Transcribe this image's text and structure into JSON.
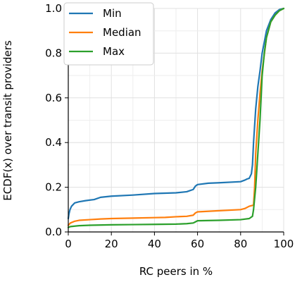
{
  "chart_data": {
    "type": "line",
    "title": "",
    "xlabel": "RC peers in %",
    "ylabel": "ECDF(x) over transit providers",
    "xlim": [
      0,
      100
    ],
    "ylim": [
      0,
      1
    ],
    "xticks": [
      "0",
      "20",
      "40",
      "60",
      "80",
      "100"
    ],
    "yticks": [
      "0.0",
      "0.2",
      "0.4",
      "0.6",
      "0.8",
      "1.0"
    ],
    "grid": true,
    "legend_placement": "top-left",
    "series": [
      {
        "name": "Min",
        "color": "#1f77b4",
        "x": [
          0,
          0.3,
          0.8,
          1.5,
          3,
          5,
          8,
          12,
          15,
          20,
          30,
          40,
          50,
          55,
          58,
          59,
          60,
          65,
          70,
          80,
          82,
          83,
          84,
          85,
          85.5,
          86,
          87,
          88,
          89,
          90,
          92,
          94,
          96,
          98,
          100
        ],
        "y": [
          0.06,
          0.08,
          0.1,
          0.115,
          0.13,
          0.135,
          0.14,
          0.145,
          0.155,
          0.16,
          0.165,
          0.172,
          0.175,
          0.18,
          0.19,
          0.205,
          0.212,
          0.218,
          0.22,
          0.225,
          0.232,
          0.237,
          0.24,
          0.26,
          0.3,
          0.4,
          0.55,
          0.65,
          0.72,
          0.8,
          0.9,
          0.95,
          0.98,
          0.995,
          1.0
        ]
      },
      {
        "name": "Median",
        "color": "#ff7f0e",
        "x": [
          0,
          0.5,
          1,
          3,
          5,
          10,
          15,
          20,
          30,
          40,
          45,
          50,
          55,
          58,
          59,
          60,
          70,
          80,
          82,
          84,
          86,
          86.5,
          87,
          88,
          89,
          90,
          92,
          94,
          96,
          98,
          100
        ],
        "y": [
          0.03,
          0.035,
          0.04,
          0.048,
          0.052,
          0.055,
          0.058,
          0.06,
          0.062,
          0.064,
          0.065,
          0.068,
          0.07,
          0.075,
          0.085,
          0.09,
          0.095,
          0.1,
          0.105,
          0.115,
          0.12,
          0.2,
          0.35,
          0.5,
          0.62,
          0.72,
          0.87,
          0.94,
          0.97,
          0.99,
          1.0
        ]
      },
      {
        "name": "Max",
        "color": "#2ca02c",
        "x": [
          0,
          0.5,
          1,
          3,
          5,
          10,
          20,
          30,
          40,
          50,
          55,
          58,
          59,
          60,
          70,
          80,
          84,
          85.5,
          86,
          87,
          88,
          89,
          90,
          91,
          92,
          94,
          96,
          98,
          100
        ],
        "y": [
          0.02,
          0.022,
          0.024,
          0.026,
          0.028,
          0.03,
          0.032,
          0.033,
          0.034,
          0.035,
          0.037,
          0.04,
          0.045,
          0.05,
          0.052,
          0.055,
          0.06,
          0.07,
          0.1,
          0.2,
          0.35,
          0.5,
          0.7,
          0.8,
          0.87,
          0.94,
          0.97,
          0.99,
          1.0
        ]
      }
    ]
  }
}
